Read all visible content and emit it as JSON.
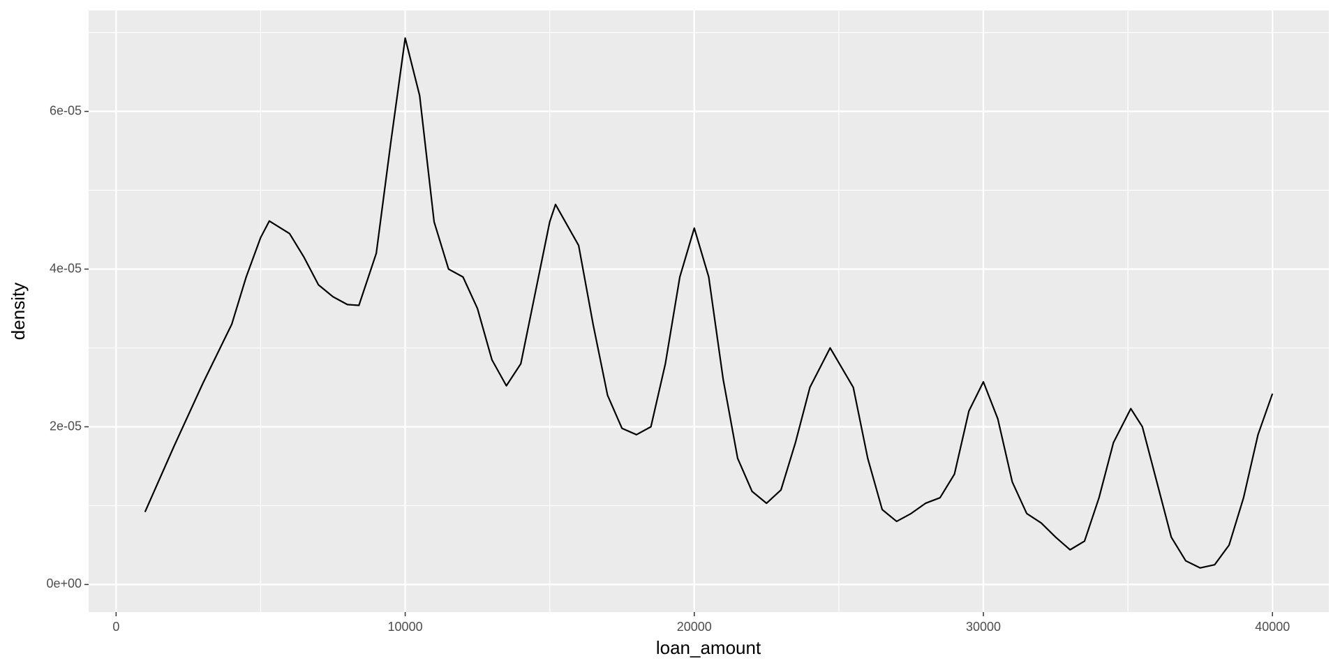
{
  "chart_data": {
    "type": "line",
    "x_label": "loan_amount",
    "y_label": "density",
    "x": [
      1000,
      2000,
      3000,
      4000,
      4500,
      5000,
      5300,
      6000,
      6500,
      7000,
      7500,
      8000,
      8400,
      9000,
      9500,
      10000,
      10500,
      11000,
      11500,
      12000,
      12500,
      13000,
      13500,
      14000,
      14500,
      15000,
      15200,
      16000,
      16500,
      17000,
      17500,
      18000,
      18500,
      19000,
      19500,
      20000,
      20500,
      21000,
      21500,
      22000,
      22500,
      23000,
      23500,
      24000,
      24700,
      25500,
      26000,
      26500,
      27000,
      27500,
      28000,
      28500,
      29000,
      29500,
      30000,
      30500,
      31000,
      31500,
      32000,
      32500,
      33000,
      33500,
      34000,
      34500,
      35100,
      35500,
      36000,
      36500,
      37000,
      37500,
      38000,
      38500,
      39000,
      39500,
      40000
    ],
    "series": [
      {
        "color": "#000000",
        "values": [
          9.2e-06,
          1.75e-05,
          2.55e-05,
          3.3e-05,
          3.9e-05,
          4.4e-05,
          4.61e-05,
          4.45e-05,
          4.15e-05,
          3.8e-05,
          3.65e-05,
          3.55e-05,
          3.54e-05,
          4.2e-05,
          5.6e-05,
          6.93e-05,
          6.2e-05,
          4.6e-05,
          4e-05,
          3.9e-05,
          3.5e-05,
          2.85e-05,
          2.52e-05,
          2.8e-05,
          3.7e-05,
          4.6e-05,
          4.82e-05,
          4.3e-05,
          3.3e-05,
          2.4e-05,
          1.98e-05,
          1.9e-05,
          2e-05,
          2.8e-05,
          3.9e-05,
          4.52e-05,
          3.9e-05,
          2.6e-05,
          1.6e-05,
          1.18e-05,
          1.03e-05,
          1.2e-05,
          1.8e-05,
          2.5e-05,
          3e-05,
          2.5e-05,
          1.6e-05,
          9.5e-06,
          8e-06,
          9e-06,
          1.03e-05,
          1.1e-05,
          1.4e-05,
          2.2e-05,
          2.57e-05,
          2.1e-05,
          1.3e-05,
          9e-06,
          7.8e-06,
          6e-06,
          4.4e-06,
          5.5e-06,
          1.1e-05,
          1.8e-05,
          2.23e-05,
          2e-05,
          1.3e-05,
          6e-06,
          3e-06,
          2.1e-06,
          2.5e-06,
          5e-06,
          1.1e-05,
          1.9e-05,
          2.42e-05
        ]
      }
    ],
    "xlim": [
      -950,
      41950
    ],
    "ylim": [
      -3.5e-06,
      7.28e-05
    ],
    "xticks": [
      0,
      10000,
      20000,
      30000,
      40000
    ],
    "yticks": [
      {
        "value": 0,
        "label": "0e+00"
      },
      {
        "value": 2e-05,
        "label": "2e-05"
      },
      {
        "value": 4e-05,
        "label": "4e-05"
      },
      {
        "value": 6e-05,
        "label": "6e-05"
      }
    ],
    "minor_xticks": [
      5000,
      15000,
      25000,
      35000
    ],
    "minor_yticks": [
      1e-05,
      3e-05,
      5e-05,
      7e-05
    ],
    "grid": true
  }
}
